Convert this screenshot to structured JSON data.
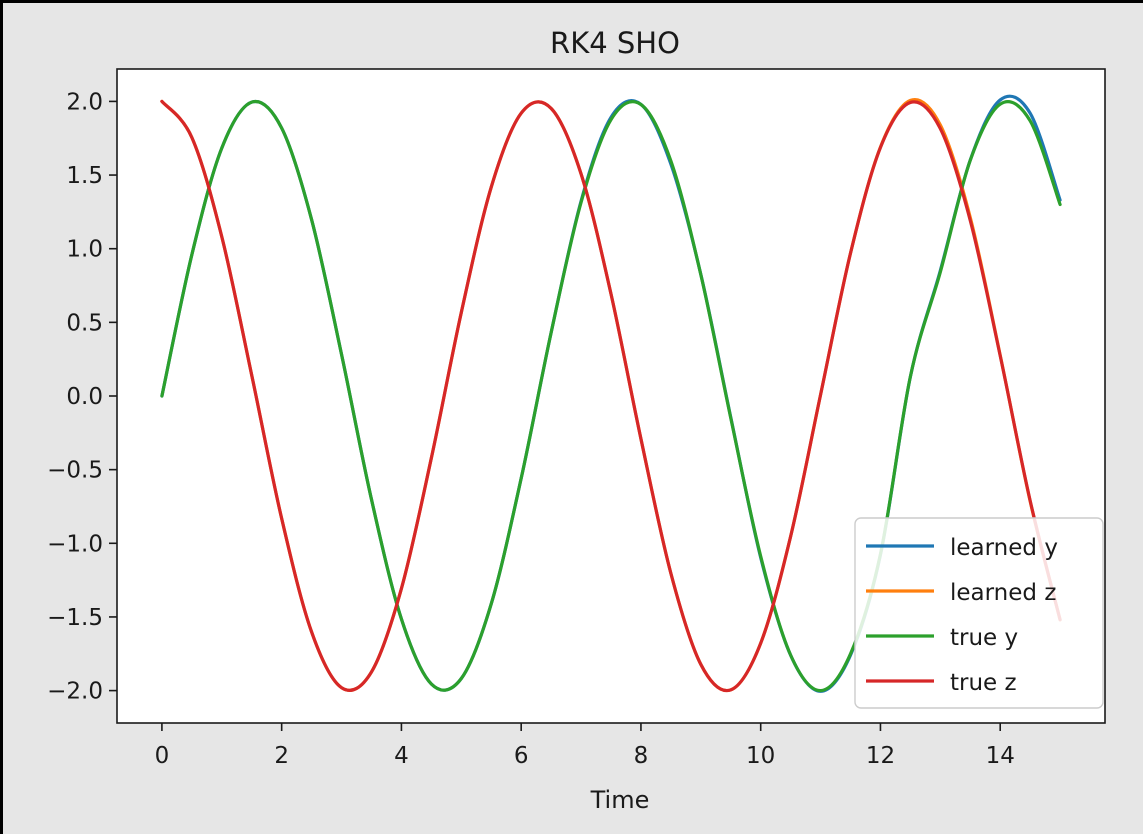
{
  "chart_data": {
    "type": "line",
    "title": "RK4 SHO",
    "xlabel": "Time",
    "ylabel": "",
    "xlim": [
      -0.75,
      15.75
    ],
    "ylim": [
      -2.22,
      2.22
    ],
    "xticks": [
      0,
      2,
      4,
      6,
      8,
      10,
      12,
      14
    ],
    "xtick_labels": [
      "0",
      "2",
      "4",
      "6",
      "8",
      "10",
      "12",
      "14"
    ],
    "yticks": [
      2.0,
      1.5,
      1.0,
      0.5,
      0.0,
      -0.5,
      -1.0,
      -1.5,
      -2.0
    ],
    "ytick_labels": [
      "2.0",
      "1.5",
      "1.0",
      "0.5",
      "0.0",
      "−0.5",
      "−1.0",
      "−1.5",
      "−2.0"
    ],
    "grid": false,
    "legend_position": "lower-right",
    "x": [
      0,
      0.5,
      1,
      1.5,
      2,
      2.5,
      3,
      3.5,
      4,
      4.5,
      5,
      5.5,
      6,
      6.5,
      7,
      7.5,
      8,
      8.5,
      9,
      9.5,
      10,
      10.5,
      11,
      11.5,
      12,
      12.5,
      13,
      13.5,
      14,
      14.5,
      15
    ],
    "series": [
      {
        "name": "learned y",
        "color": "#1f77b4",
        "values": [
          0,
          0.959,
          1.683,
          1.995,
          1.819,
          1.197,
          0.282,
          -0.702,
          -1.514,
          -1.955,
          -1.918,
          -1.411,
          -0.559,
          0.43,
          1.323,
          1.892,
          1.98,
          1.574,
          0.826,
          -0.144,
          -1.097,
          -1.76,
          -2.005,
          -1.759,
          -1.079,
          0.131,
          0.852,
          1.602,
          2.01,
          1.92,
          1.33
        ]
      },
      {
        "name": "learned z",
        "color": "#ff7f0e",
        "values": [
          2,
          1.755,
          1.081,
          0.141,
          -0.832,
          -1.602,
          -1.98,
          -1.873,
          -1.307,
          -0.421,
          0.567,
          1.418,
          1.92,
          1.953,
          1.508,
          0.693,
          -0.291,
          -1.204,
          -1.822,
          -1.995,
          -1.678,
          -0.953,
          0.009,
          0.97,
          1.69,
          2.007,
          1.84,
          1.212,
          0.277,
          -0.715,
          -1.52
        ]
      },
      {
        "name": "true y",
        "color": "#2ca02c",
        "values": [
          0,
          0.959,
          1.683,
          1.995,
          1.819,
          1.197,
          0.282,
          -0.702,
          -1.514,
          -1.955,
          -1.918,
          -1.411,
          -0.559,
          0.43,
          1.314,
          1.876,
          1.979,
          1.596,
          0.824,
          -0.15,
          -1.088,
          -1.759,
          -2,
          -1.75,
          -1.073,
          0.132,
          0.841,
          1.6,
          1.981,
          1.868,
          1.3
        ]
      },
      {
        "name": "true z",
        "color": "#d62728",
        "values": [
          2,
          1.755,
          1.081,
          0.141,
          -0.832,
          -1.602,
          -1.98,
          -1.873,
          -1.307,
          -0.421,
          0.567,
          1.418,
          1.92,
          1.953,
          1.508,
          0.693,
          -0.291,
          -1.204,
          -1.822,
          -1.995,
          -1.678,
          -0.953,
          0.009,
          0.97,
          1.687,
          1.993,
          1.815,
          1.191,
          0.273,
          -0.71,
          -1.519
        ]
      }
    ]
  }
}
